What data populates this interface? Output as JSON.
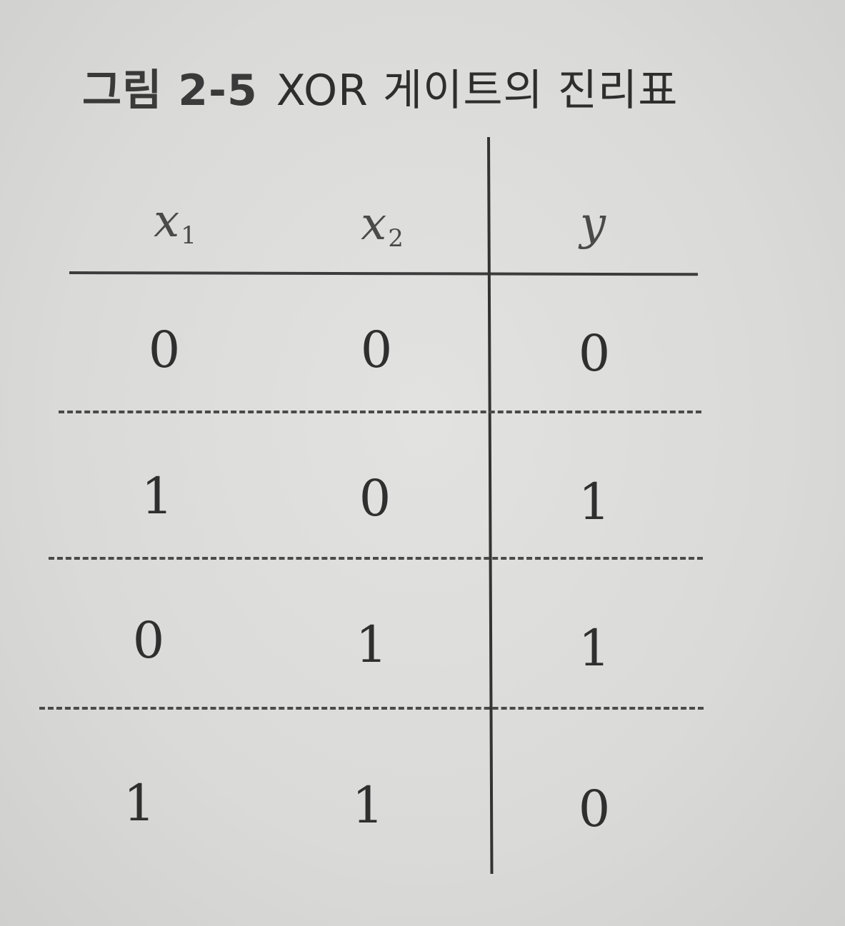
{
  "caption": {
    "label": "그림 2-5",
    "title": "XOR 게이트의 진리표"
  },
  "table": {
    "headers": [
      {
        "var": "x",
        "sub": "1"
      },
      {
        "var": "x",
        "sub": "2"
      },
      {
        "var": "y",
        "sub": ""
      }
    ],
    "rows": [
      [
        "0",
        "0",
        "0"
      ],
      [
        "1",
        "0",
        "1"
      ],
      [
        "0",
        "1",
        "1"
      ],
      [
        "1",
        "1",
        "0"
      ]
    ]
  }
}
